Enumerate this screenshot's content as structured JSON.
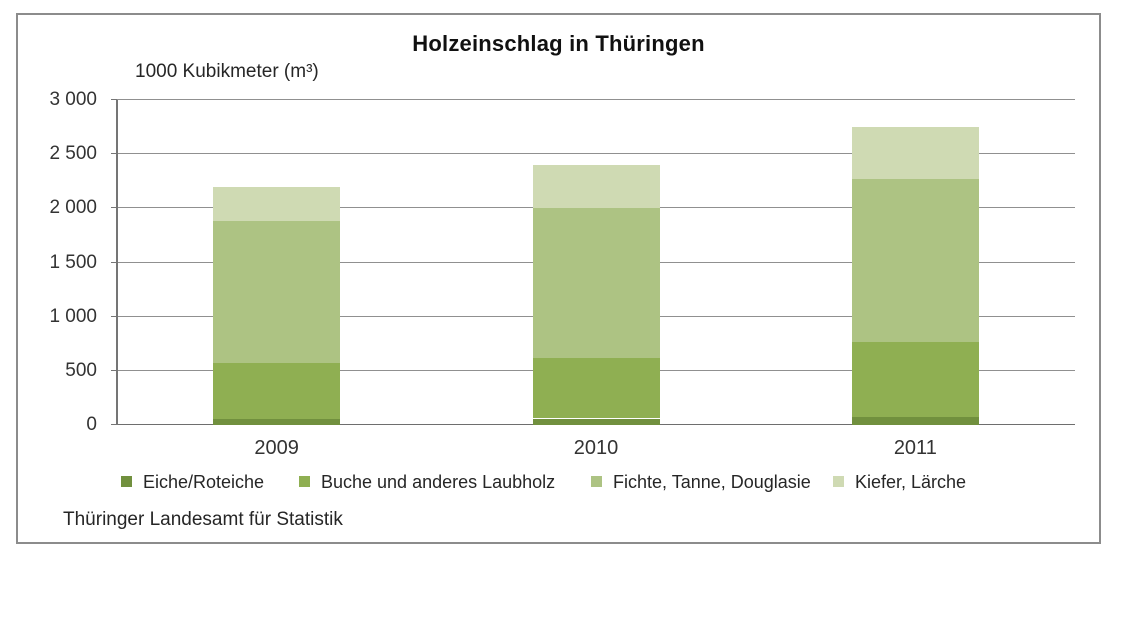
{
  "chart_data": {
    "type": "bar",
    "stacked": true,
    "title": "Holzeinschlag in Thüringen",
    "unit_label": "1000 Kubikmeter (m³)",
    "source": "Thüringer Landesamt für Statistik",
    "categories": [
      "2009",
      "2010",
      "2011"
    ],
    "series": [
      {
        "name": "Eiche/Roteiche",
        "color": "#71903E",
        "values": [
          55,
          60,
          70
        ]
      },
      {
        "name": "Buche und anderes Laubholz",
        "color": "#8FAF52",
        "values": [
          520,
          560,
          700
        ]
      },
      {
        "name": "Fichte, Tanne, Douglasie",
        "color": "#ADC383",
        "values": [
          1305,
          1380,
          1500
        ]
      },
      {
        "name": "Kiefer, Lärche",
        "color": "#CFDAB3",
        "values": [
          320,
          400,
          480
        ]
      }
    ],
    "totals": [
      2200,
      2400,
      2750
    ],
    "ylim": [
      0,
      3000
    ],
    "ytick_values": [
      0,
      500,
      1000,
      1500,
      2000,
      2500,
      3000
    ],
    "ytick_labels": [
      "0",
      "500",
      "1 000",
      "1 500",
      "2 000",
      "2 500",
      "3 000"
    ],
    "grid": true,
    "legend_position": "bottom"
  },
  "colors": {
    "grid": "#909090",
    "axis": "#757575",
    "frame_border": "#8c8c8c",
    "text": "#262626"
  }
}
